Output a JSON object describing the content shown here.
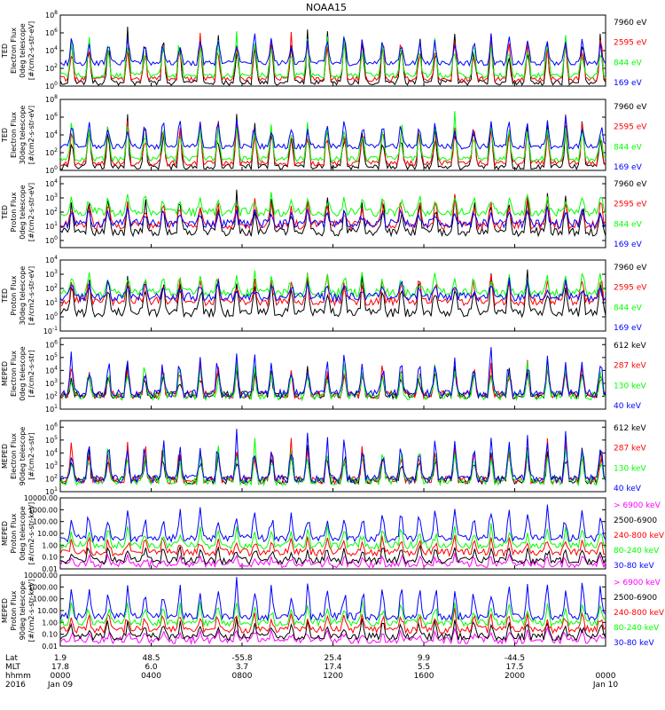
{
  "chart_data": {
    "type": "line",
    "title": "NOAA15",
    "x_ticks": [
      {
        "hhmm": "0000",
        "pos": 0.0
      },
      {
        "hhmm": "0400",
        "pos": 0.1667
      },
      {
        "hhmm": "0800",
        "pos": 0.3333
      },
      {
        "hhmm": "1200",
        "pos": 0.5
      },
      {
        "hhmm": "1600",
        "pos": 0.6667
      },
      {
        "hhmm": "2000",
        "pos": 0.8333
      },
      {
        "hhmm": "0000",
        "pos": 1.0
      }
    ],
    "footer": {
      "row_labels": [
        "Lat",
        "MLT",
        "hhmm",
        "2016"
      ],
      "lat": [
        "1.9",
        "48.5",
        "-55.8",
        "25.4",
        "9.9",
        "-44.5"
      ],
      "mlt": [
        "17.8",
        "6.0",
        "3.7",
        "17.4",
        "5.5",
        "17.5"
      ],
      "hhmm": [
        "0000",
        "0400",
        "0800",
        "1200",
        "1600",
        "2000",
        "0000"
      ],
      "dates": [
        "Jan 09",
        "Jan 10"
      ]
    },
    "panels": [
      {
        "ylabel": [
          "TED",
          "Electron Flux",
          "0deg telescope",
          "[#/cm2-s-str-eV]"
        ],
        "ylog": true,
        "y_ticks": [
          "10^0",
          "10^2",
          "10^4",
          "10^6",
          "10^8"
        ],
        "ylim_exp": [
          0,
          8
        ],
        "series": [
          {
            "name": "7960 eV",
            "color": "#000000",
            "base": 0.4,
            "spike": 6.0
          },
          {
            "name": "2595 eV",
            "color": "#ff0000",
            "base": 0.8,
            "spike": 5.2
          },
          {
            "name": "844 eV",
            "color": "#00ff00",
            "base": 1.2,
            "spike": 4.8
          },
          {
            "name": "169 eV",
            "color": "#0000ff",
            "base": 2.6,
            "spike": 3.4
          }
        ]
      },
      {
        "ylabel": [
          "TED",
          "Electron Flux",
          "30deg telescope",
          "[#/cm2-s-str-eV]"
        ],
        "ylog": true,
        "y_ticks": [
          "10^0",
          "10^2",
          "10^4",
          "10^6",
          "10^8"
        ],
        "ylim_exp": [
          0,
          8
        ],
        "series": [
          {
            "name": "7960 eV",
            "color": "#000000",
            "base": 0.4,
            "spike": 5.8
          },
          {
            "name": "2595 eV",
            "color": "#ff0000",
            "base": 0.8,
            "spike": 5.0
          },
          {
            "name": "844 eV",
            "color": "#00ff00",
            "base": 1.3,
            "spike": 4.7
          },
          {
            "name": "169 eV",
            "color": "#0000ff",
            "base": 2.7,
            "spike": 3.2
          }
        ]
      },
      {
        "ylabel": [
          "TED",
          "Proton Flux",
          "0deg telescope",
          "[#/cm2-s-str-eV]"
        ],
        "ylog": true,
        "y_ticks": [
          "10^0",
          "10^1",
          "10^2",
          "10^3",
          "10^4"
        ],
        "ylim_exp": [
          -0.5,
          4.5
        ],
        "series": [
          {
            "name": "7960 eV",
            "color": "#000000",
            "base": 0.6,
            "spike": 2.6
          },
          {
            "name": "2595 eV",
            "color": "#ff0000",
            "base": 1.1,
            "spike": 2.1
          },
          {
            "name": "844 eV",
            "color": "#00ff00",
            "base": 2.0,
            "spike": 1.3
          },
          {
            "name": "169 eV",
            "color": "#0000ff",
            "base": 1.2,
            "spike": 1.0
          }
        ]
      },
      {
        "ylabel": [
          "TED",
          "Proton Flux",
          "30deg telescope",
          "[#/cm2-s-str-eV]"
        ],
        "ylog": true,
        "y_ticks": [
          "10^-1",
          "10^0",
          "10^1",
          "10^2",
          "10^3",
          "10^4"
        ],
        "ylim_exp": [
          -1,
          4
        ],
        "series": [
          {
            "name": "7960 eV",
            "color": "#000000",
            "base": 0.3,
            "spike": 2.8
          },
          {
            "name": "2595 eV",
            "color": "#ff0000",
            "base": 1.1,
            "spike": 1.9
          },
          {
            "name": "844 eV",
            "color": "#00ff00",
            "base": 1.7,
            "spike": 1.4
          },
          {
            "name": "169 eV",
            "color": "#0000ff",
            "base": 1.4,
            "spike": 1.1
          }
        ]
      },
      {
        "ylabel": [
          "MEPED",
          "Electron Flux",
          "0deg telescope",
          "[#/cm2-s-str]"
        ],
        "ylog": true,
        "y_ticks": [
          "10^1",
          "10^2",
          "10^3",
          "10^4",
          "10^5",
          "10^6"
        ],
        "ylim_exp": [
          1,
          6.5
        ],
        "series": [
          {
            "name": "612 keV",
            "color": "#000000",
            "base": 2.1,
            "spike": 2.3
          },
          {
            "name": "287 keV",
            "color": "#ff0000",
            "base": 2.1,
            "spike": 2.6
          },
          {
            "name": "130 keV",
            "color": "#00ff00",
            "base": 2.0,
            "spike": 2.5
          },
          {
            "name": "40 keV",
            "color": "#0000ff",
            "base": 2.2,
            "spike": 3.4
          }
        ]
      },
      {
        "ylabel": [
          "MEPED",
          "Electron Flux",
          "90deg telescope",
          "[#/cm2-s-str]"
        ],
        "ylog": true,
        "y_ticks": [
          "10^1",
          "10^2",
          "10^3",
          "10^4",
          "10^5",
          "10^6"
        ],
        "ylim_exp": [
          1,
          6.5
        ],
        "series": [
          {
            "name": "612 keV",
            "color": "#000000",
            "base": 1.9,
            "spike": 2.6
          },
          {
            "name": "287 keV",
            "color": "#ff0000",
            "base": 1.9,
            "spike": 3.0
          },
          {
            "name": "130 keV",
            "color": "#00ff00",
            "base": 1.8,
            "spike": 3.0
          },
          {
            "name": "40 keV",
            "color": "#0000ff",
            "base": 2.0,
            "spike": 3.6
          }
        ]
      },
      {
        "ylabel": [
          "MEPED",
          "Proton Flux",
          "0deg telescope",
          "[#/cm2-s-str-keV]"
        ],
        "ylog": true,
        "y_ticks": [
          "0.01",
          "0.10",
          "1.00",
          "10.00",
          "100.00",
          "1000.00",
          "10000.00"
        ],
        "ylim_exp": [
          -2,
          4
        ],
        "series": [
          {
            "name": "> 6900 keV",
            "color": "#ff00ff",
            "base": -1.6,
            "spike": 0.8
          },
          {
            "name": "2500-6900",
            "color": "#000000",
            "base": -1.3,
            "spike": 1.3
          },
          {
            "name": "240-800 keV",
            "color": "#ff0000",
            "base": -0.6,
            "spike": 1.4
          },
          {
            "name": "80-240 keV",
            "color": "#00ff00",
            "base": 0.0,
            "spike": 1.6
          },
          {
            "name": "30-80 keV",
            "color": "#0000ff",
            "base": 0.6,
            "spike": 2.6
          }
        ]
      },
      {
        "ylabel": [
          "MEPED",
          "Proton Flux",
          "90deg telescope",
          "[#/cm2-s-str-keV]"
        ],
        "ylog": true,
        "y_ticks": [
          "0.01",
          "0.10",
          "1.00",
          "10.00",
          "100.00",
          "1000.00",
          "10000.00"
        ],
        "ylim_exp": [
          -2,
          4
        ],
        "series": [
          {
            "name": "> 6900 keV",
            "color": "#ff00ff",
            "base": -1.5,
            "spike": 0.9
          },
          {
            "name": "2500-6900",
            "color": "#000000",
            "base": -1.2,
            "spike": 1.4
          },
          {
            "name": "240-800 keV",
            "color": "#ff0000",
            "base": -0.6,
            "spike": 1.6
          },
          {
            "name": "80-240 keV",
            "color": "#00ff00",
            "base": 0.0,
            "spike": 1.8
          },
          {
            "name": "30-80 keV",
            "color": "#0000ff",
            "base": 0.5,
            "spike": 3.0
          }
        ]
      }
    ]
  }
}
